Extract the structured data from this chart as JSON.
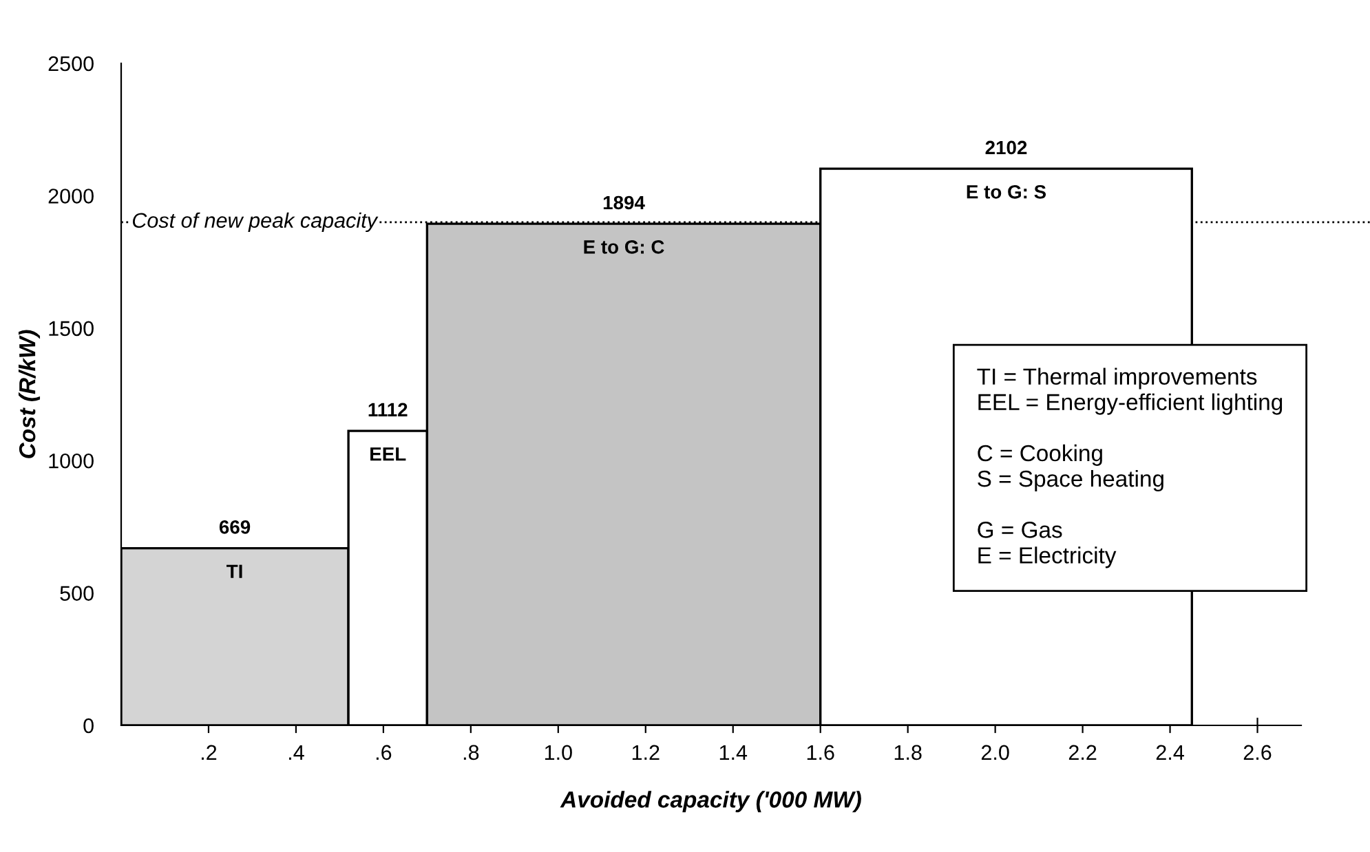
{
  "chart_data": {
    "type": "histogram",
    "xlabel": "Avoided capacity ('000 MW)",
    "ylabel": "Cost (R/kW)",
    "bins": [
      0,
      0.52,
      0.7,
      1.6,
      2.45
    ],
    "values": [
      669,
      1112,
      1894,
      2102
    ],
    "colors": [
      "#d4d4d4",
      "#ffffff",
      "#c4c4c4",
      "#ffffff"
    ],
    "data_labels": true,
    "xlim": [
      0,
      2.7
    ],
    "ylim": [
      0,
      2500
    ],
    "xticks": [
      {
        "value": 0.2,
        "label": ".2"
      },
      {
        "value": 0.4,
        "label": ".4"
      },
      {
        "value": 0.6,
        "label": ".6"
      },
      {
        "value": 0.8,
        "label": ".8"
      },
      {
        "value": 1.0,
        "label": "1.0"
      },
      {
        "value": 1.2,
        "label": "1.2"
      },
      {
        "value": 1.4,
        "label": "1.4"
      },
      {
        "value": 1.6,
        "label": "1.6"
      },
      {
        "value": 1.8,
        "label": "1.8"
      },
      {
        "value": 2.0,
        "label": "2.0"
      },
      {
        "value": 2.2,
        "label": "2.2"
      },
      {
        "value": 2.4,
        "label": "2.4"
      },
      {
        "value": 2.6,
        "label": "2.6"
      }
    ],
    "yticks": [
      0,
      500,
      1000,
      1500,
      2000,
      2500
    ],
    "grid": false,
    "ref_lines": [
      {
        "axis": "y",
        "value": 1900,
        "label": "Cost of new peak capacity",
        "line_style": "dotted",
        "color": "#000000"
      }
    ],
    "annotations": [
      {
        "text": "TI",
        "x": 0.26,
        "y": 669
      },
      {
        "text": "EEL",
        "x": 0.61,
        "y": 1112
      },
      {
        "text": "E to G: C",
        "x": 1.15,
        "y": 1894
      },
      {
        "text": "E to G: S",
        "x": 2.025,
        "y": 2102
      },
      "TI = Thermal improvements\nEEL = Energy-efficient lighting\n\nC = Cooking\nS = Space heating\n\nG = Gas\nE = Electricity"
    ]
  }
}
